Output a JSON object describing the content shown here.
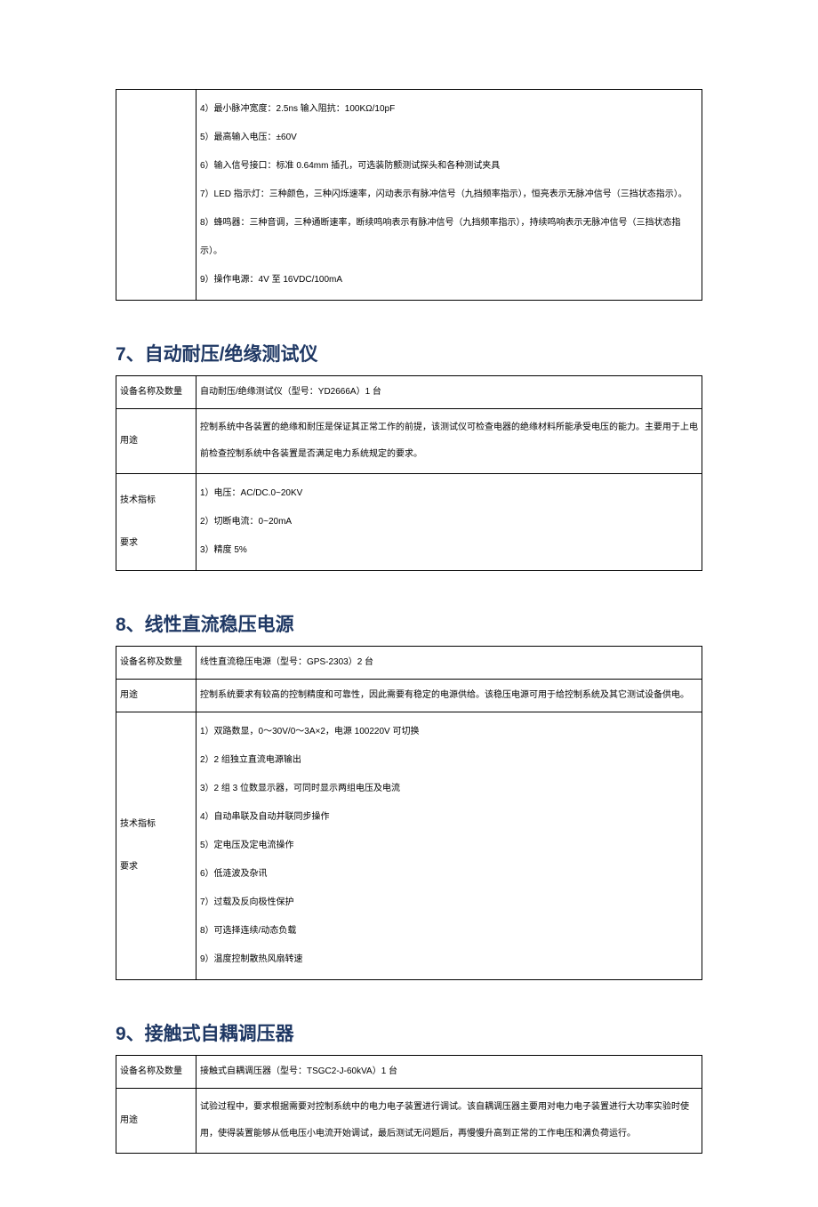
{
  "colors": {
    "heading": "#1f3864",
    "border": "#000000",
    "text": "#000000",
    "background": "#ffffff"
  },
  "typography": {
    "heading_fontsize": 21,
    "cell_fontsize": 10,
    "heading_weight": "bold"
  },
  "labels": {
    "device_name_qty": "设备名称及数量",
    "usage": "用途",
    "tech_specs_line1": "技术指标",
    "tech_specs_line2": "要求"
  },
  "section6_continued": {
    "specs": [
      "4）最小脉冲宽度：2.5ns 输入阻抗：100KΩ/10pF",
      "5）最高输入电压：±60V",
      "6）输入信号接口：标准 0.64mm 插孔，可选装防颤测试探头和各种测试夹具",
      "7）LED 指示灯：三种颜色，三种闪烁速率，闪动表示有脉冲信号（九挡频率指示），恒亮表示无脉冲信号（三挡状态指示）。",
      "8）蜂鸣器：三种音调，三种通断速率，断续鸣响表示有脉冲信号（九挡频率指示），持续鸣响表示无脉冲信号（三挡状态指示）。",
      "9）操作电源：4V 至 16VDC/100mA"
    ]
  },
  "section7": {
    "title": "7、自动耐压/绝缘测试仪",
    "device": "自动耐压/绝缘测试仪（型号：YD2666A）1 台",
    "usage": "控制系统中各装置的绝缘和耐压是保证其正常工作的前提，该测试仪可检查电器的绝缘材料所能承受电压的能力。主要用于上电前检查控制系统中各装置是否满足电力系统规定的要求。",
    "specs": [
      "1）电压：AC/DC.0~20KV",
      "2）切断电流：0~20mA",
      "3）精度 5%"
    ]
  },
  "section8": {
    "title": "8、线性直流稳压电源",
    "device": "线性直流稳压电源（型号：GPS-2303）2 台",
    "usage": "控制系统要求有较高的控制精度和可靠性，因此需要有稳定的电源供给。该稳压电源可用于给控制系统及其它测试设备供电。",
    "specs": [
      "1）双路数显，0～30V/0～3A×2，电源 100220V 可切换",
      "2）2 组独立直流电源输出",
      "3）2 组 3 位数显示器，可同时显示两组电压及电流",
      "4）自动串联及自动并联同步操作",
      "5）定电压及定电流操作",
      "6）低涟波及杂讯",
      "7）过载及反向极性保护",
      "8）可选择连续/动态负载",
      "9）温度控制散热风扇转速"
    ]
  },
  "section9": {
    "title": "9、接触式自耦调压器",
    "device": "接触式自耦调压器（型号：TSGC2-J-60kVA）1 台",
    "usage": "试验过程中，要求根据需要对控制系统中的电力电子装置进行调试。该自耦调压器主要用对电力电子装置进行大功率实验时使用，使得装置能够从低电压小电流开始调试，最后测试无问题后，再慢慢升高到正常的工作电压和满负荷运行。"
  }
}
